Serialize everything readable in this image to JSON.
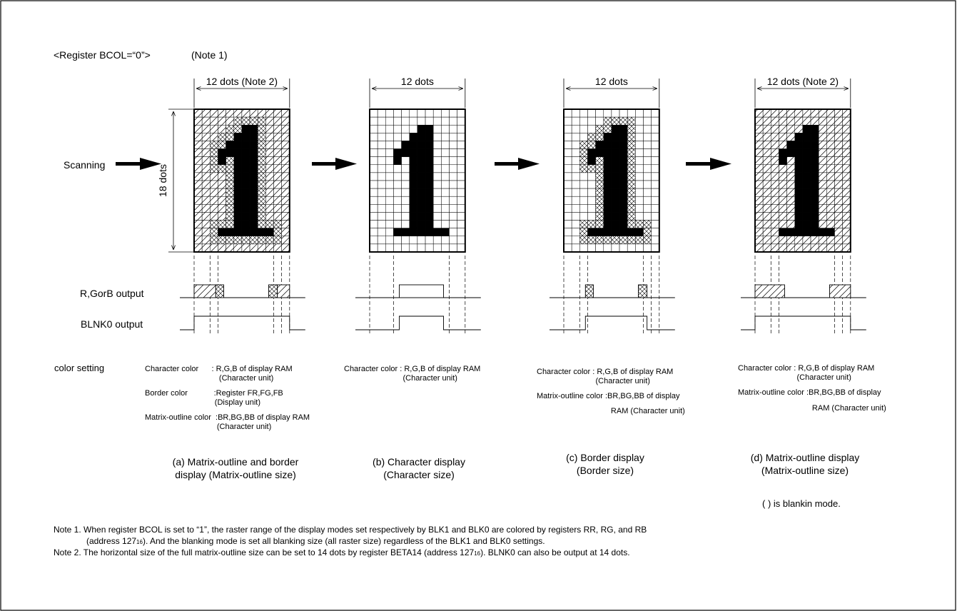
{
  "header": {
    "register_label": "<Register BCOL=“0”>",
    "note_ref": "(Note 1)"
  },
  "scanning_label": "Scanning",
  "vertical_dim_label": "18 dots",
  "signal_labels": {
    "rgb_output": "R,GorB output",
    "blnk_output": "BLNK0  output"
  },
  "color_setting_label": "color setting",
  "panels": [
    {
      "id": "a",
      "dim_label": "12 dots (Note 2)",
      "cell_style": "matrix-border",
      "color_lines": [
        "Character color      : R,G,B of display RAM",
        "                                  (Character unit)",
        "Border color            :Register FR,FG,FB",
        "                                (Display unit)",
        "Matrix-outline color  :BR,BG,BB of display RAM",
        "                                 (Character unit)"
      ],
      "caption_lines": [
        "(a) Matrix-outline and border",
        "display (Matrix-outline size)"
      ]
    },
    {
      "id": "b",
      "dim_label": "12 dots",
      "cell_style": "character",
      "color_lines": [
        "Character color : R,G,B of display RAM",
        "                           (Character unit)"
      ],
      "caption_lines": [
        "(b) Character display",
        "(Character size)"
      ]
    },
    {
      "id": "c",
      "dim_label": "12 dots",
      "cell_style": "border",
      "color_lines": [
        "Character color : R,G,B of display RAM",
        "                           (Character unit)",
        "Matrix-outline color :BR,BG,BB of display",
        "                                  RAM (Character unit)"
      ],
      "caption_lines": [
        "(c) Border display",
        "(Border size)"
      ]
    },
    {
      "id": "d",
      "dim_label": "12 dots (Note 2)",
      "cell_style": "matrix",
      "color_lines": [
        "Character color : R,G,B of display RAM",
        "                           (Character unit)",
        "Matrix-outline color :BR,BG,BB of display",
        "                                  RAM (Character unit)"
      ],
      "caption_lines": [
        "(d)  Matrix-outline display",
        "(Matrix-outline size)"
      ]
    }
  ],
  "blanking_note": "(   ) is blankin mode.",
  "notes": {
    "note1_line1": "Note 1. When register BCOL is set to “1”, the raster range of the display modes set respectively by BLK1 and BLK0 are colored by registers RR, RG, and RB",
    "note1_line2a": "(address 127",
    "note1_line2_sub": "16",
    "note1_line2b": "). And the blanking mode is set all blanking size (all raster size) regardless of the BLK1 and BLK0 settings.",
    "note2_a": "Note 2. The horizontal size of the full matrix-outline size can be set to 14 dots by register BETA14 (address 127",
    "note2_sub": "16",
    "note2_b": "). BLNK0 can also be output at 14 dots."
  },
  "glyph_bitmap": [
    "............",
    "............",
    "......XX....",
    ".....XXX....",
    "....XXXX....",
    "...XXXXX....",
    "...X.XXX....",
    ".....XXX....",
    ".....XXX....",
    ".....XXX....",
    ".....XXX....",
    ".....XXX....",
    ".....XXX....",
    ".....XXX....",
    ".....XXX....",
    "...XXXXXXX..",
    "............",
    "............"
  ],
  "colors": {
    "line": "#000000",
    "background": "#ffffff"
  }
}
